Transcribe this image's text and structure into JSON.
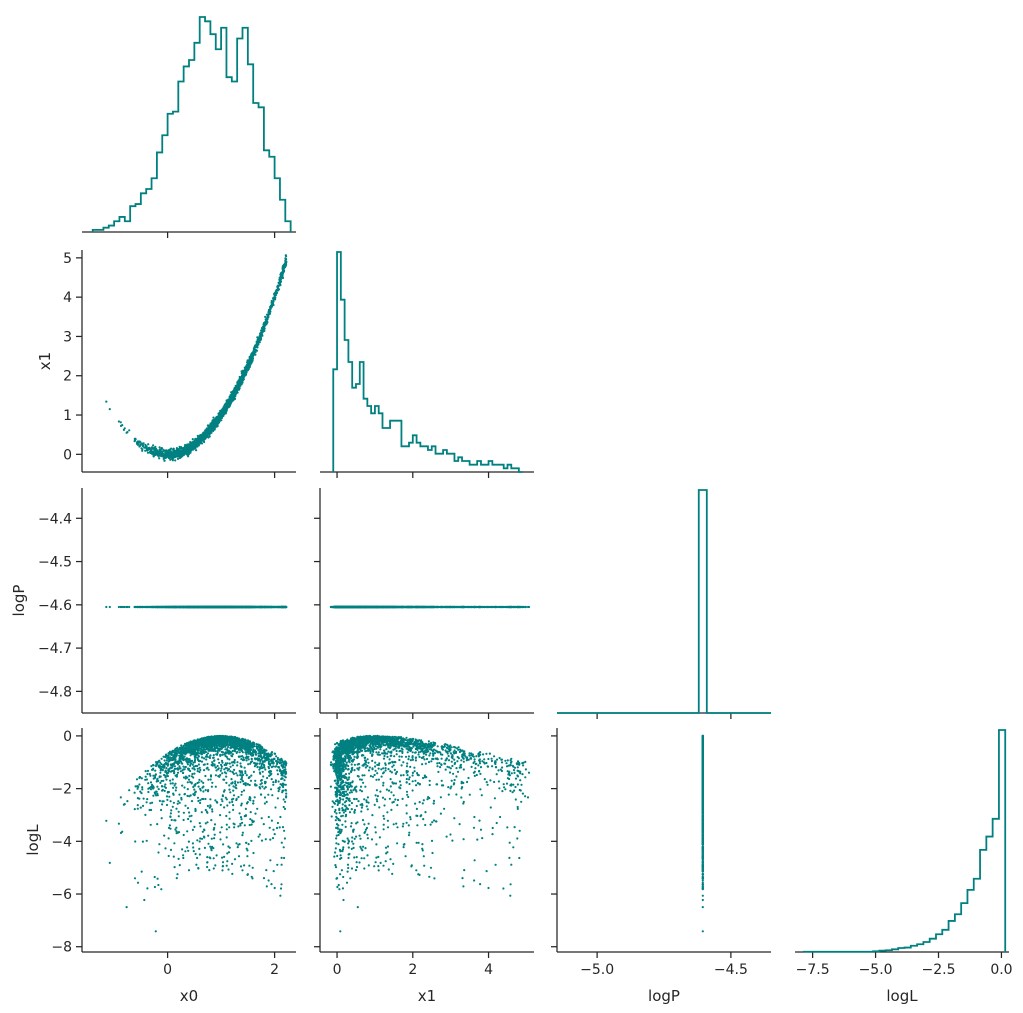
{
  "chart_data": {
    "type": "scatter",
    "title": "",
    "variables": [
      "x0",
      "x1",
      "logP",
      "logL"
    ],
    "color": "#008080",
    "axis_color": "#262626",
    "grid": false,
    "diagonal": "histogram",
    "layout": "corner",
    "ranges": {
      "x0": [
        -1.6,
        2.4
      ],
      "x1": [
        -0.45,
        5.2
      ],
      "logP": [
        -5.15,
        -4.35
      ],
      "logL": [
        -8.2,
        0.3
      ]
    },
    "logP_range_row": [
      -4.85,
      -4.33
    ],
    "ticks": {
      "x0": {
        "values": [
          0,
          2
        ],
        "labels": [
          "0",
          "2"
        ]
      },
      "x1": {
        "values": [
          0,
          1,
          2,
          3,
          4,
          5
        ],
        "labels": [
          "0",
          "1",
          "2",
          "3",
          "4",
          "5"
        ]
      },
      "x1_bottom": {
        "values": [
          0,
          2,
          4
        ],
        "labels": [
          "0",
          "2",
          "4"
        ]
      },
      "logP": {
        "values": [
          -4.4,
          -4.5,
          -4.6,
          -4.7,
          -4.8
        ],
        "labels": [
          "−4.4",
          "−4.5",
          "−4.6",
          "−4.7",
          "−4.8"
        ]
      },
      "logP_bottom": {
        "values": [
          -5.0,
          -4.5
        ],
        "labels": [
          "−5.0",
          "−4.5"
        ]
      },
      "logL": {
        "values": [
          0,
          -2,
          -4,
          -6,
          -8
        ],
        "labels": [
          "0",
          "−2",
          "−4",
          "−6",
          "−8"
        ]
      },
      "logL_bottom": {
        "values": [
          -7.5,
          -5.0,
          -2.5,
          0.0
        ],
        "labels": [
          "−7.5",
          "−5.0",
          "−2.5",
          "0.0"
        ]
      }
    },
    "constant_logP": -4.605,
    "histograms": {
      "x0": {
        "bins": [
          -1.4,
          -1.3,
          -1.2,
          -1.1,
          -1.0,
          -0.9,
          -0.8,
          -0.7,
          -0.6,
          -0.5,
          -0.4,
          -0.3,
          -0.2,
          -0.1,
          0.0,
          0.1,
          0.2,
          0.3,
          0.4,
          0.5,
          0.6,
          0.7,
          0.8,
          0.9,
          1.0,
          1.1,
          1.2,
          1.3,
          1.4,
          1.5,
          1.6,
          1.7,
          1.8,
          1.9,
          2.0,
          2.1,
          2.2
        ],
        "counts": [
          1,
          1,
          2,
          3,
          5,
          7,
          5,
          12,
          13,
          18,
          20,
          25,
          37,
          45,
          55,
          56,
          70,
          77,
          80,
          88,
          100,
          98,
          92,
          85,
          95,
          72,
          70,
          90,
          95,
          78,
          60,
          58,
          38,
          35,
          25,
          15,
          5
        ]
      },
      "x1": {
        "bins": [
          -0.1,
          0.0,
          0.1,
          0.2,
          0.3,
          0.4,
          0.5,
          0.6,
          0.7,
          0.8,
          0.9,
          1.0,
          1.1,
          1.2,
          1.3,
          1.4,
          1.5,
          1.6,
          1.7,
          1.8,
          1.9,
          2.0,
          2.1,
          2.2,
          2.3,
          2.4,
          2.5,
          2.6,
          2.7,
          2.8,
          2.9,
          3.0,
          3.1,
          3.2,
          3.3,
          3.4,
          3.5,
          3.6,
          3.7,
          3.8,
          3.9,
          4.0,
          4.1,
          4.2,
          4.3,
          4.4,
          4.5,
          4.6,
          4.7,
          4.8
        ],
        "counts": [
          28,
          60,
          47,
          36,
          30,
          23,
          24,
          30,
          20,
          18,
          16,
          18,
          16,
          12,
          12,
          14,
          14,
          14,
          7,
          7,
          8,
          10,
          8,
          7,
          7,
          6,
          7,
          5,
          5,
          6,
          5,
          5,
          3,
          4,
          3,
          3,
          2,
          2,
          3,
          2,
          2,
          3,
          2,
          2,
          2,
          1,
          2,
          1,
          1,
          0
        ]
      },
      "logP": {
        "bins": [
          -4.62
        ],
        "counts": [
          100
        ]
      },
      "logL": {
        "bins": [
          -7.85,
          -7.6,
          -7.35,
          -7.1,
          -6.85,
          -6.6,
          -6.35,
          -6.1,
          -5.85,
          -5.6,
          -5.35,
          -5.1,
          -4.85,
          -4.6,
          -4.35,
          -4.1,
          -3.85,
          -3.6,
          -3.35,
          -3.1,
          -2.85,
          -2.6,
          -2.35,
          -2.1,
          -1.85,
          -1.6,
          -1.35,
          -1.1,
          -0.85,
          -0.6,
          -0.35,
          -0.1
        ],
        "counts": [
          0.1,
          0.1,
          0.1,
          0.1,
          0.1,
          0.1,
          0.1,
          0.1,
          0.1,
          0.1,
          0.1,
          0.3,
          0.6,
          0.8,
          1.2,
          1.8,
          2,
          2.8,
          3.5,
          4.5,
          6,
          8,
          10,
          14,
          17,
          22,
          28,
          33,
          46,
          52,
          60,
          100
        ]
      }
    },
    "scatter_samples": 2600,
    "seed": 20240611
  }
}
